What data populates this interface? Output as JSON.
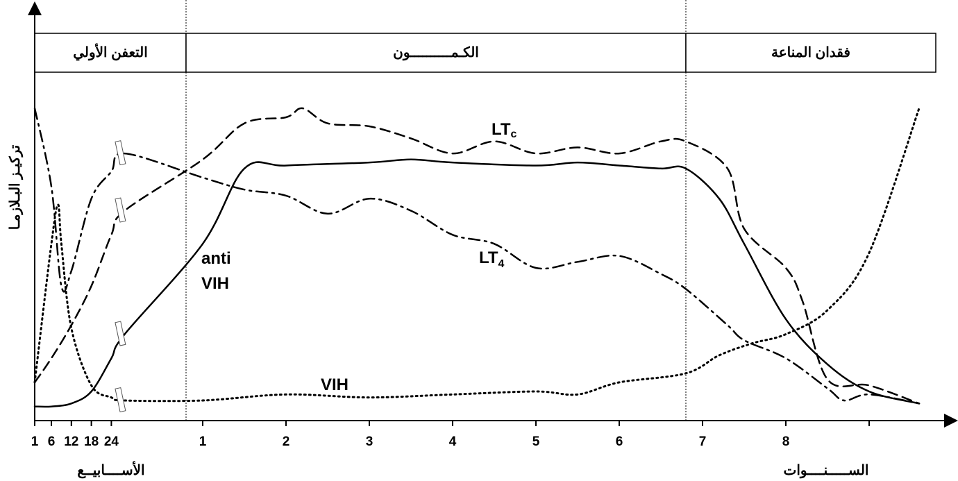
{
  "chart_data": {
    "type": "line",
    "title": "",
    "ylabel": "تركيـز البـلازمـا",
    "xlabel_weeks": "الأســــابيــع",
    "xlabel_years": "الســـــنــــوات",
    "phases": [
      {
        "name": "التعفن الأولي",
        "start_year": 0.0,
        "end_year": 0.0
      },
      {
        "name": "الكـمــــــــــون",
        "start_year": 0.0,
        "end_year": 6.8
      },
      {
        "name": "فقدان المناعة",
        "start_year": 6.8,
        "end_year": 9.6
      }
    ],
    "week_ticks": [
      "1",
      "6",
      "12",
      "18",
      "24"
    ],
    "year_ticks": [
      "1",
      "2",
      "3",
      "4",
      "5",
      "6",
      "7",
      "8"
    ],
    "y_scale": "relative concentration (0–100, unlabeled)",
    "axis_break": "between week 26 and year 1",
    "grid": false,
    "legend": "inline labels on curves",
    "series": [
      {
        "name": "LTc",
        "label_main": "LT",
        "label_sub": "c",
        "style": "dashed",
        "points": [
          [
            1,
            9
          ],
          [
            6,
            17
          ],
          [
            12,
            28
          ],
          [
            18,
            41
          ],
          [
            24,
            58
          ],
          [
            28,
            66
          ],
          [
            "y1",
            83
          ],
          [
            "y1.5",
            95
          ],
          [
            "y2",
            97
          ],
          [
            "y2.2",
            100
          ],
          [
            "y2.5",
            95
          ],
          [
            "y3",
            94
          ],
          [
            "y3.5",
            90
          ],
          [
            "y4",
            85
          ],
          [
            "y4.5",
            89
          ],
          [
            "y5",
            85
          ],
          [
            "y5.5",
            87
          ],
          [
            "y6",
            85
          ],
          [
            "y6.5",
            89
          ],
          [
            "y6.8",
            89
          ],
          [
            "y7.3",
            80
          ],
          [
            "y7.5",
            60
          ],
          [
            "y8",
            47
          ],
          [
            "y8.2",
            36
          ],
          [
            "y8.5",
            10
          ],
          [
            "y9",
            8
          ],
          [
            "y9.6",
            2
          ]
        ]
      },
      {
        "name": "LT4",
        "label_main": "LT",
        "label_sub": "4",
        "style": "dash-dot",
        "points": [
          [
            1,
            100
          ],
          [
            6,
            74
          ],
          [
            9,
            41
          ],
          [
            12,
            46
          ],
          [
            18,
            70
          ],
          [
            24,
            79
          ],
          [
            28,
            85
          ],
          [
            "y1",
            77
          ],
          [
            "y1.5",
            73
          ],
          [
            "y2",
            71
          ],
          [
            "y2.5",
            65
          ],
          [
            "y3",
            70
          ],
          [
            "y3.5",
            66
          ],
          [
            "y4",
            58
          ],
          [
            "y4.5",
            55
          ],
          [
            "y5",
            47
          ],
          [
            "y5.5",
            49
          ],
          [
            "y6",
            51
          ],
          [
            "y6.5",
            45
          ],
          [
            "y6.8",
            40
          ],
          [
            "y7.3",
            28
          ],
          [
            "y7.5",
            23
          ],
          [
            "y8",
            17
          ],
          [
            "y8.5",
            7
          ],
          [
            "y8.7",
            3
          ],
          [
            "y9",
            5
          ],
          [
            "y9.6",
            2
          ]
        ]
      },
      {
        "name": "anti VIH",
        "label_main": "anti",
        "label_sub": "VIH",
        "style": "solid",
        "points": [
          [
            1,
            1
          ],
          [
            6,
            1
          ],
          [
            12,
            2
          ],
          [
            18,
            6
          ],
          [
            24,
            17
          ],
          [
            28,
            25
          ],
          [
            "y1",
            55
          ],
          [
            "y1.5",
            80
          ],
          [
            "y2",
            81
          ],
          [
            "y3",
            82
          ],
          [
            "y3.5",
            83
          ],
          [
            "y4",
            82
          ],
          [
            "y5",
            81
          ],
          [
            "y5.5",
            82
          ],
          [
            "y6",
            81
          ],
          [
            "y6.5",
            80
          ],
          [
            "y6.8",
            80
          ],
          [
            "y7.2",
            70
          ],
          [
            "y7.5",
            55
          ],
          [
            "y8",
            30
          ],
          [
            "y8.5",
            15
          ],
          [
            "y9",
            6
          ],
          [
            "y9.6",
            2
          ]
        ]
      },
      {
        "name": "VIH",
        "label_main": "VIH",
        "label_sub": "",
        "style": "dotted",
        "points": [
          [
            1,
            9
          ],
          [
            6,
            55
          ],
          [
            8,
            68
          ],
          [
            9,
            55
          ],
          [
            12,
            27
          ],
          [
            18,
            8
          ],
          [
            24,
            4
          ],
          [
            28,
            3
          ],
          [
            "y1",
            3
          ],
          [
            "y2",
            5
          ],
          [
            "y3",
            4
          ],
          [
            "y4",
            5
          ],
          [
            "y5",
            6
          ],
          [
            "y5.5",
            5
          ],
          [
            "y6",
            9
          ],
          [
            "y6.8",
            12
          ],
          [
            "y7.2",
            18
          ],
          [
            "y7.6",
            22
          ],
          [
            "y8",
            25
          ],
          [
            "y8.5",
            33
          ],
          [
            "y9",
            52
          ],
          [
            "y9.6",
            100
          ]
        ]
      }
    ]
  }
}
